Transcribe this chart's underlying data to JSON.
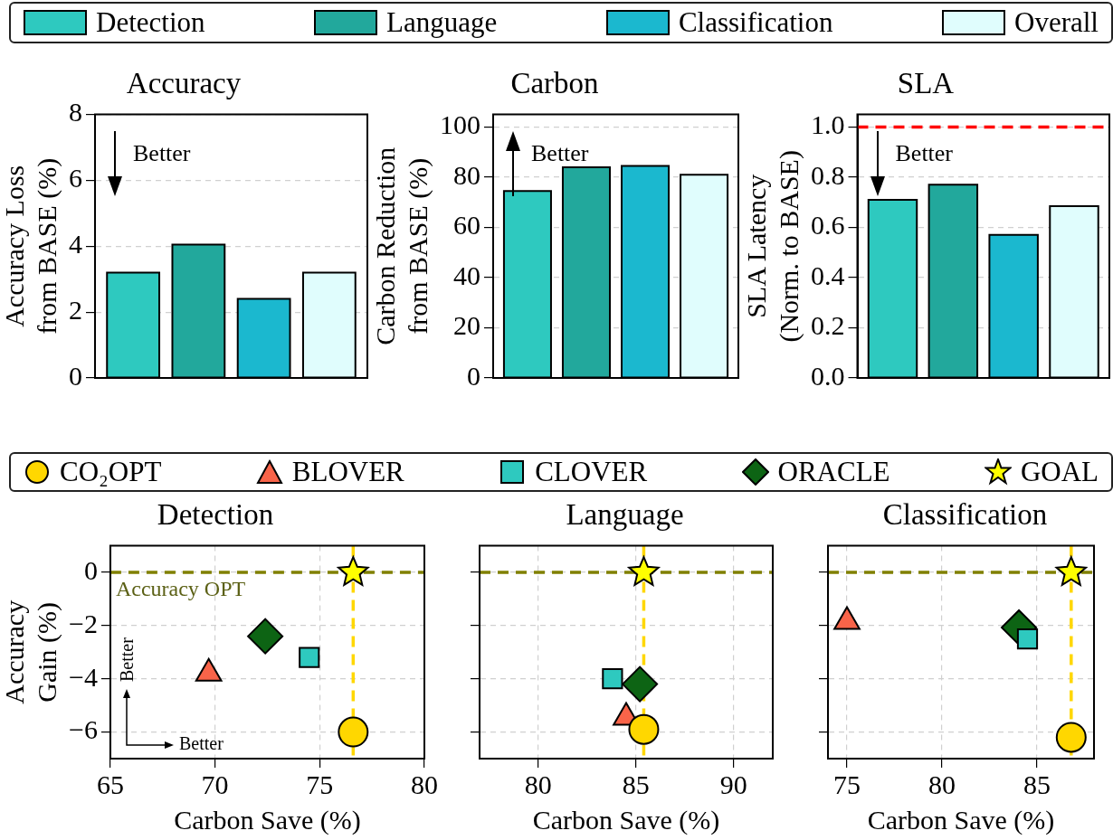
{
  "chart_data": [
    {
      "type": "bar",
      "title": "Accuracy",
      "ylabel": "Accuracy Loss from BASE (%)",
      "categories": [
        null
      ],
      "legend": "top",
      "grid": "y",
      "ylim": [
        0,
        8
      ],
      "yticks": [
        0,
        2,
        4,
        6,
        8
      ],
      "annotations": [
        "Better"
      ],
      "series": [
        {
          "name": "Detection",
          "color": "#2ec9bf",
          "values": [
            3.2
          ]
        },
        {
          "name": "Language",
          "color": "#22a89c",
          "values": [
            4.05
          ]
        },
        {
          "name": "Classification",
          "color": "#1bb8cf",
          "values": [
            2.4
          ]
        },
        {
          "name": "Overall",
          "color": "#e0fdfd",
          "values": [
            3.2
          ]
        }
      ]
    },
    {
      "type": "bar",
      "title": "Carbon",
      "ylabel": "Carbon Reduction from BASE (%)",
      "categories": [
        null
      ],
      "grid": "y",
      "ylim": [
        0,
        105
      ],
      "yticks": [
        0,
        20,
        40,
        60,
        80,
        100
      ],
      "annotations": [
        "Better"
      ],
      "series": [
        {
          "color": "#2ec9bf",
          "values": [
            74.5
          ]
        },
        {
          "color": "#22a89c",
          "values": [
            84
          ]
        },
        {
          "color": "#1bb8cf",
          "values": [
            84.5
          ]
        },
        {
          "color": "#e0fdfd",
          "values": [
            81
          ]
        }
      ]
    },
    {
      "type": "bar",
      "title": "SLA",
      "ylabel": "SLA Latency (Norm. to BASE)",
      "categories": [
        null
      ],
      "grid": "y",
      "ylim": [
        0,
        1.05
      ],
      "yticks": [
        {
          "value": 0,
          "label": "0.0"
        },
        {
          "value": 0.2,
          "label": "0.2"
        },
        {
          "value": 0.4,
          "label": "0.4"
        },
        {
          "value": 0.6,
          "label": "0.6"
        },
        {
          "value": 0.8,
          "label": "0.8"
        },
        {
          "value": 1,
          "label": "1.0"
        }
      ],
      "annotations": [
        "Better"
      ],
      "ref_lines": [
        {
          "axis": "y",
          "value": 1,
          "color": "#ff0000",
          "line_style": "dashed"
        }
      ],
      "series": [
        {
          "color": "#2ec9bf",
          "values": [
            0.71
          ]
        },
        {
          "color": "#22a89c",
          "values": [
            0.77
          ]
        },
        {
          "color": "#1bb8cf",
          "values": [
            0.57
          ]
        },
        {
          "color": "#e0fdfd",
          "values": [
            0.685
          ]
        }
      ]
    },
    {
      "type": "scatter",
      "title": "Detection",
      "xlabel": "Carbon Save (%)",
      "ylabel": "Accuracy Gain (%)",
      "legend": "top",
      "grid": true,
      "xlim": [
        65,
        80
      ],
      "xticks": [
        65,
        70,
        75,
        80
      ],
      "ylim": [
        -7,
        1
      ],
      "yticks": [
        {
          "value": -6,
          "label": "−6"
        },
        {
          "value": -4,
          "label": "−4"
        },
        {
          "value": -2,
          "label": "−2"
        },
        0
      ],
      "annotations": [
        "Better",
        "Better"
      ],
      "ref_lines": [
        {
          "axis": "y",
          "value": 0,
          "label": "Accuracy OPT",
          "color": "#808000",
          "line_style": "dashed"
        },
        {
          "axis": "x",
          "value": 76.6,
          "color": "#ffd700",
          "line_style": "dashed"
        }
      ],
      "series": [
        {
          "name": "CO₂OPT",
          "color": "#ffd700",
          "marker": "circle",
          "x": [
            76.6
          ],
          "values": [
            -6.0
          ]
        },
        {
          "name": "BLOVER",
          "color": "#f96449",
          "marker": "triangle",
          "x": [
            69.7
          ],
          "values": [
            -3.8
          ]
        },
        {
          "name": "CLOVER",
          "color": "#2ec9bf",
          "marker": "square",
          "x": [
            74.5
          ],
          "values": [
            -3.2
          ]
        },
        {
          "name": "ORACLE",
          "color": "#0d6414",
          "marker": "diamond",
          "x": [
            72.4
          ],
          "values": [
            -2.4
          ]
        },
        {
          "name": "GOAL",
          "color": "#ffff00",
          "marker": "star",
          "x": [
            76.6
          ],
          "values": [
            0
          ]
        }
      ]
    },
    {
      "type": "scatter",
      "title": "Language",
      "xlabel": "Carbon Save (%)",
      "tick_labels": "x",
      "grid": true,
      "xlim": [
        77,
        92
      ],
      "xticks": [
        80,
        85,
        90
      ],
      "ylim": [
        -7,
        1
      ],
      "yticks": [
        -6,
        -4,
        -2,
        0
      ],
      "ref_lines": [
        {
          "axis": "y",
          "value": 0,
          "color": "#808000",
          "line_style": "dashed"
        },
        {
          "axis": "x",
          "value": 85.4,
          "color": "#ffd700",
          "line_style": "dashed"
        }
      ],
      "series": [
        {
          "color": "#ffd700",
          "marker": "circle",
          "x": [
            85.4
          ],
          "values": [
            -5.9
          ]
        },
        {
          "color": "#f96449",
          "marker": "triangle",
          "x": [
            84.5
          ],
          "values": [
            -5.45
          ]
        },
        {
          "color": "#2ec9bf",
          "marker": "square",
          "x": [
            83.8
          ],
          "values": [
            -4.0
          ]
        },
        {
          "color": "#0d6414",
          "marker": "diamond",
          "x": [
            85.2
          ],
          "values": [
            -4.2
          ]
        },
        {
          "color": "#ffff00",
          "marker": "star",
          "x": [
            85.4
          ],
          "values": [
            0
          ]
        }
      ]
    },
    {
      "type": "scatter",
      "title": "Classification",
      "xlabel": "Carbon Save (%)",
      "tick_labels": "x",
      "grid": true,
      "xlim": [
        74,
        88
      ],
      "xticks": [
        75,
        80,
        85
      ],
      "ylim": [
        -7,
        1
      ],
      "yticks": [
        -6,
        -4,
        -2,
        0
      ],
      "ref_lines": [
        {
          "axis": "y",
          "value": 0,
          "color": "#808000",
          "line_style": "dashed"
        },
        {
          "axis": "x",
          "value": 86.8,
          "color": "#ffd700",
          "line_style": "dashed"
        }
      ],
      "series": [
        {
          "color": "#ffd700",
          "marker": "circle",
          "x": [
            86.8
          ],
          "values": [
            -6.2
          ]
        },
        {
          "color": "#f96449",
          "marker": "triangle",
          "x": [
            75.0
          ],
          "values": [
            -1.85
          ]
        },
        {
          "color": "#2ec9bf",
          "marker": "square",
          "x": [
            84.5
          ],
          "values": [
            -2.5
          ]
        },
        {
          "color": "#0d6414",
          "marker": "diamond",
          "x": [
            84.05
          ],
          "values": [
            -2.07
          ]
        },
        {
          "color": "#ffff00",
          "marker": "star",
          "x": [
            86.8
          ],
          "values": [
            0
          ]
        }
      ]
    }
  ]
}
